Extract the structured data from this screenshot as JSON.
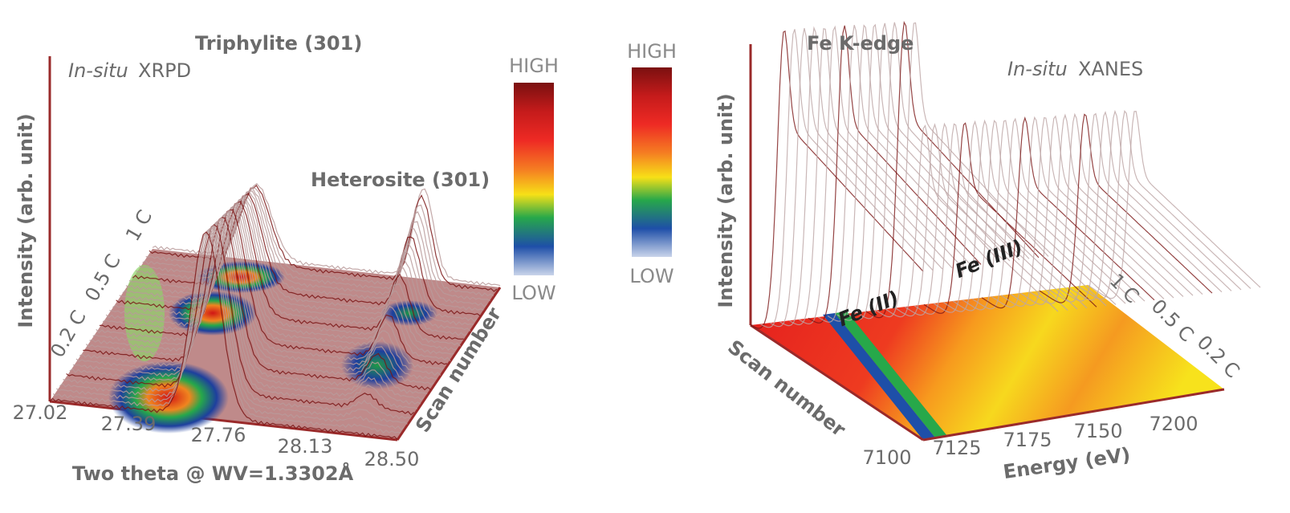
{
  "left_panel": {
    "title_italic": "In-situ",
    "title": "XRPD",
    "peak_1": "Triphylite (301)",
    "peak_2": "Heterosite (301)",
    "y_label": "Intensity (arb. unit)",
    "x_label": "Two theta @ WV=1.3302Å",
    "x_ticks": [
      "27.02",
      "27.39",
      "27.76",
      "28.13",
      "28.50"
    ],
    "depth_label": "Scan number",
    "rates": [
      "0.2 C",
      "0.5 C",
      "1 C"
    ]
  },
  "colorbar_1": {
    "high": "HIGH",
    "low": "LOW"
  },
  "colorbar_2": {
    "high": "HIGH",
    "low": "LOW"
  },
  "right_panel": {
    "edge_label": "Fe K-edge",
    "title_italic": "In-situ",
    "title": "XANES",
    "y_label": "Intensity (arb. unit)",
    "depth_label": "Scan number",
    "x_label": "Energy (eV)",
    "x_ticks": [
      "7100",
      "7125",
      "7175",
      "7150",
      "7200"
    ],
    "state_1": "Fe (II)",
    "state_2": "Fe (III)",
    "rates": [
      "1 C",
      "0.5 C",
      "0.2 C"
    ]
  }
}
